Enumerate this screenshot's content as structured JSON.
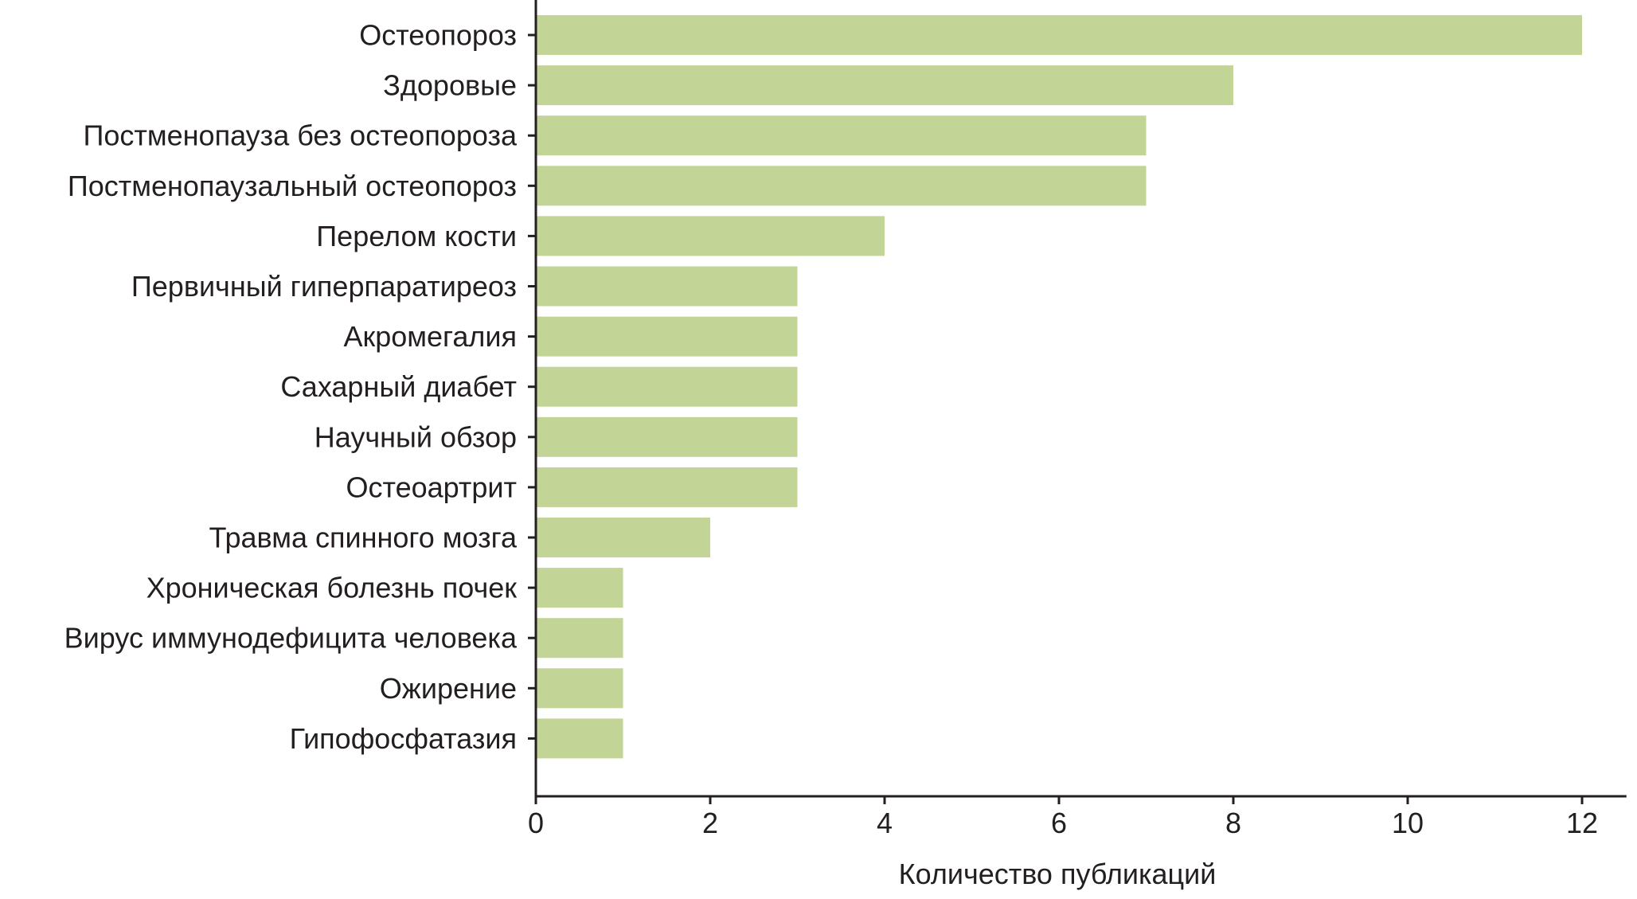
{
  "chart_data": {
    "type": "bar",
    "orientation": "horizontal",
    "title": "",
    "xlabel": "Количество публикаций",
    "ylabel": "",
    "xlim": [
      0,
      12.5
    ],
    "xticks": [
      0,
      2,
      4,
      6,
      8,
      10,
      12
    ],
    "grid": false,
    "bar_color": "#c2d496",
    "axis_color": "#231f20",
    "categories": [
      "Остеопороз",
      "Здоровые",
      "Постменопауза без остеопороза",
      "Постменопаузальный остеопороз",
      "Перелом кости",
      "Первичный гиперпаратиреоз",
      "Акромегалия",
      "Сахарный диабет",
      "Научный обзор",
      "Остеоартрит",
      "Травма спинного мозга",
      "Хроническая болезнь почек",
      "Вирус иммунодефицита человека",
      "Ожирение",
      "Гипофосфатазия"
    ],
    "values": [
      12,
      8,
      7,
      7,
      4,
      3,
      3,
      3,
      3,
      3,
      2,
      1,
      1,
      1,
      1
    ]
  }
}
